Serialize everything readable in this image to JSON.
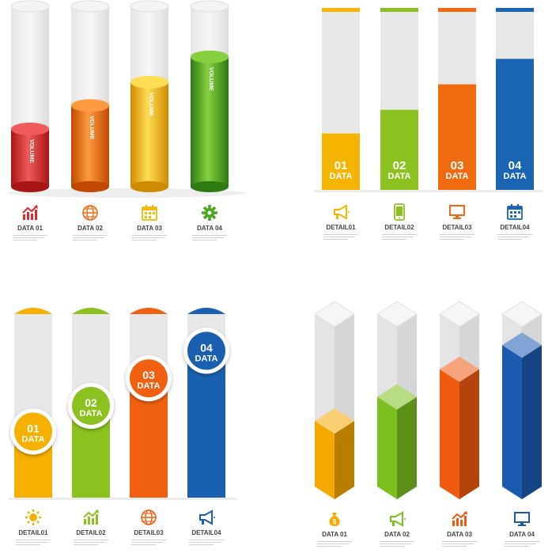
{
  "panel_a": {
    "items": [
      {
        "label": "DATA 01",
        "bar_text": "VOLUME",
        "fill": 0.32,
        "color": "#e02a2a",
        "light": "#f05a5a",
        "dark": "#a81515",
        "icon": "chart-up-icon"
      },
      {
        "label": "DATA 02",
        "bar_text": "VOLUME",
        "fill": 0.45,
        "color": "#f06a10",
        "light": "#ff9a40",
        "dark": "#c04800",
        "icon": "globe-icon"
      },
      {
        "label": "DATA 03",
        "bar_text": "VOLUME",
        "fill": 0.58,
        "color": "#f5b800",
        "light": "#ffdd55",
        "dark": "#d08a00",
        "icon": "calendar-icon"
      },
      {
        "label": "DATA 04",
        "bar_text": "VOLUME",
        "fill": 0.72,
        "color": "#4aa81c",
        "light": "#86d040",
        "dark": "#2c7a10",
        "icon": "gear-icon"
      }
    ]
  },
  "panel_b": {
    "items": [
      {
        "num": "01",
        "word": "DATA",
        "label": "DETAIL01",
        "fill": 0.31,
        "color": "#f5b400",
        "icon": "megaphone-icon"
      },
      {
        "num": "02",
        "word": "DATA",
        "label": "DETAIL02",
        "fill": 0.44,
        "color": "#8cc220",
        "icon": "phone-icon"
      },
      {
        "num": "03",
        "word": "DATA",
        "label": "DETAIL03",
        "fill": 0.58,
        "color": "#f06a10",
        "icon": "monitor-icon"
      },
      {
        "num": "04",
        "word": "DATA",
        "label": "DETAIL04",
        "fill": 0.72,
        "color": "#1a64b4",
        "icon": "calendar-icon"
      }
    ]
  },
  "panel_c": {
    "items": [
      {
        "num": "01",
        "word": "DATA",
        "label": "DETAIL01",
        "fill": 0.36,
        "color": "#f5b000",
        "icon": "sun-icon"
      },
      {
        "num": "02",
        "word": "DATA",
        "label": "DETAIL02",
        "fill": 0.5,
        "color": "#8cc220",
        "icon": "chart-up-icon"
      },
      {
        "num": "03",
        "word": "DATA",
        "label": "DETAIL03",
        "fill": 0.65,
        "color": "#f06010",
        "icon": "globe-icon"
      },
      {
        "num": "04",
        "word": "DATA",
        "label": "DETAIL04",
        "fill": 0.8,
        "color": "#1a60b0",
        "icon": "megaphone-icon"
      }
    ]
  },
  "panel_d": {
    "items": [
      {
        "label": "DATA 01",
        "fill": 0.38,
        "color": "#f5a800",
        "icon": "money-bag-icon"
      },
      {
        "label": "DATA 02",
        "fill": 0.52,
        "color": "#7cc020",
        "icon": "megaphone-icon"
      },
      {
        "label": "DATA 03",
        "fill": 0.68,
        "color": "#f05a10",
        "icon": "chart-up-icon"
      },
      {
        "label": "DATA 04",
        "fill": 0.82,
        "color": "#1a5ab0",
        "icon": "monitor-icon"
      }
    ]
  }
}
